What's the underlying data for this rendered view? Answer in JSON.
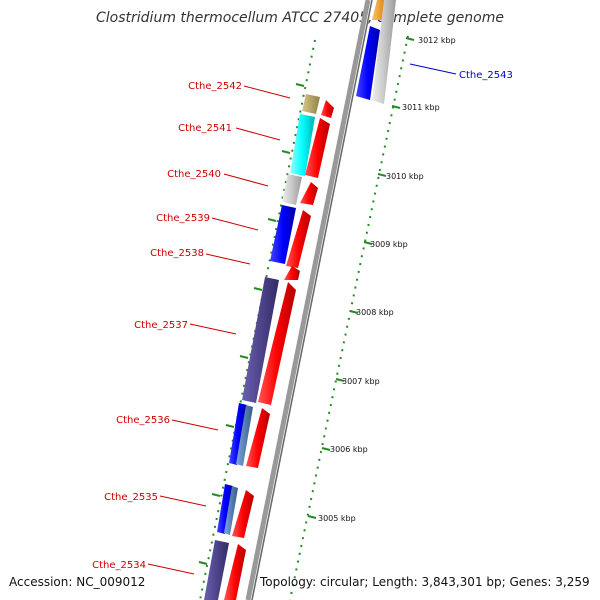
{
  "title": "Clostridium thermocellum ATCC 27405, complete genome",
  "footer": {
    "accession": "Accession: NC_009012",
    "topology": "Topology: circular; Length: 3,843,301 bp; Genes: 3,259"
  },
  "map": {
    "scale_ticks": [
      "3012 kbp",
      "3011 kbp",
      "3010 kbp",
      "3009 kbp",
      "3008 kbp",
      "3007 kbp",
      "3006 kbp",
      "3005 kbp"
    ],
    "gene_labels": [
      {
        "text": "Cthe_2543",
        "color": "#0000cc"
      },
      {
        "text": "Cthe_2542",
        "color": "#cc0000"
      },
      {
        "text": "Cthe_2541",
        "color": "#cc0000"
      },
      {
        "text": "Cthe_2540",
        "color": "#cc0000"
      },
      {
        "text": "Cthe_2539",
        "color": "#cc0000"
      },
      {
        "text": "Cthe_2538",
        "color": "#cc0000"
      },
      {
        "text": "Cthe_2537",
        "color": "#cc0000"
      },
      {
        "text": "Cthe_2536",
        "color": "#cc0000"
      },
      {
        "text": "Cthe_2535",
        "color": "#cc0000"
      },
      {
        "text": "Cthe_2534",
        "color": "#cc0000"
      }
    ],
    "colors": {
      "forward_cds": "#ff0000",
      "blue_cds": "#0000ff",
      "cyan_cds": "#00ffff",
      "gray_cds": "#c8c8c8",
      "tan_cds": "#b8a86a",
      "slate_cds": "#4a3f8a",
      "steel_cds": "#4f7fbf",
      "orange_cds": "#ff9900",
      "backbone": "#888888",
      "tick_marks": "#228b22"
    }
  }
}
